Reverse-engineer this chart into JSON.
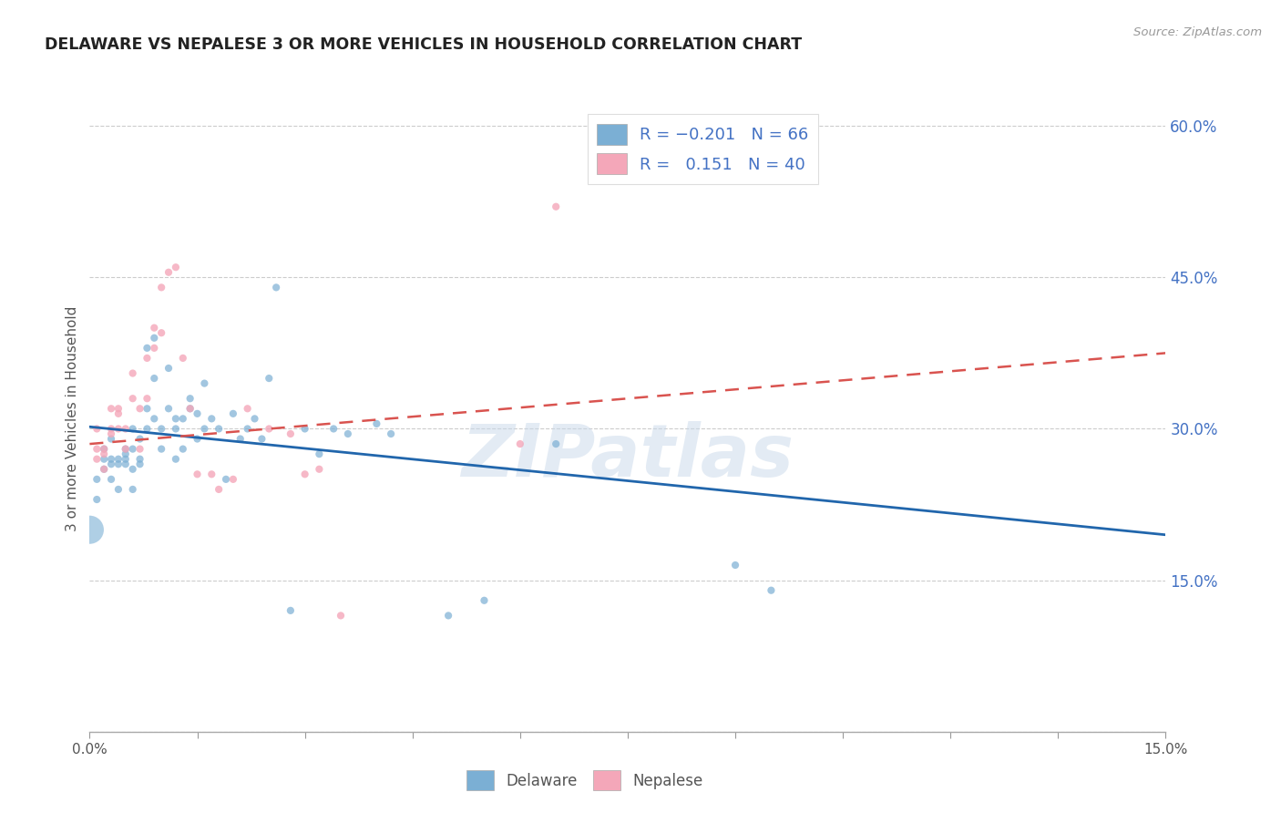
{
  "title": "DELAWARE VS NEPALESE 3 OR MORE VEHICLES IN HOUSEHOLD CORRELATION CHART",
  "source": "Source: ZipAtlas.com",
  "ylabel": "3 or more Vehicles in Household",
  "legend_label1": "Delaware",
  "legend_label2": "Nepalese",
  "xlim": [
    0.0,
    0.15
  ],
  "ylim": [
    0.0,
    0.62
  ],
  "x_ticks": [
    0.0,
    0.015,
    0.03,
    0.045,
    0.06,
    0.075,
    0.09,
    0.105,
    0.12,
    0.135,
    0.15
  ],
  "x_tick_labels_show": [
    "0.0%",
    "",
    "",
    "",
    "",
    "",
    "",
    "",
    "",
    "",
    "15.0%"
  ],
  "y_ticks": [
    0.0,
    0.15,
    0.3,
    0.45,
    0.6
  ],
  "y_tick_labels": [
    "",
    "15.0%",
    "30.0%",
    "45.0%",
    "60.0%"
  ],
  "color_delaware": "#7bafd4",
  "color_nepalese": "#f4a7b9",
  "color_line_delaware": "#2166ac",
  "color_line_nepalese": "#d9534f",
  "color_legend_text": "#4472c4",
  "watermark": "ZIPatlas",
  "delaware_x": [
    0.001,
    0.001,
    0.002,
    0.002,
    0.002,
    0.003,
    0.003,
    0.003,
    0.003,
    0.004,
    0.004,
    0.004,
    0.005,
    0.005,
    0.005,
    0.005,
    0.006,
    0.006,
    0.006,
    0.006,
    0.007,
    0.007,
    0.007,
    0.008,
    0.008,
    0.008,
    0.009,
    0.009,
    0.009,
    0.01,
    0.01,
    0.011,
    0.011,
    0.012,
    0.012,
    0.012,
    0.013,
    0.013,
    0.014,
    0.014,
    0.015,
    0.015,
    0.016,
    0.016,
    0.017,
    0.018,
    0.019,
    0.02,
    0.021,
    0.022,
    0.023,
    0.024,
    0.025,
    0.026,
    0.028,
    0.03,
    0.032,
    0.034,
    0.036,
    0.04,
    0.042,
    0.05,
    0.055,
    0.065,
    0.09,
    0.095
  ],
  "delaware_y": [
    0.23,
    0.25,
    0.26,
    0.27,
    0.28,
    0.25,
    0.265,
    0.27,
    0.29,
    0.24,
    0.265,
    0.27,
    0.265,
    0.27,
    0.275,
    0.28,
    0.24,
    0.26,
    0.28,
    0.3,
    0.29,
    0.265,
    0.27,
    0.3,
    0.32,
    0.38,
    0.31,
    0.35,
    0.39,
    0.28,
    0.3,
    0.32,
    0.36,
    0.27,
    0.3,
    0.31,
    0.28,
    0.31,
    0.32,
    0.33,
    0.29,
    0.315,
    0.3,
    0.345,
    0.31,
    0.3,
    0.25,
    0.315,
    0.29,
    0.3,
    0.31,
    0.29,
    0.35,
    0.44,
    0.12,
    0.3,
    0.275,
    0.3,
    0.295,
    0.305,
    0.295,
    0.115,
    0.13,
    0.285,
    0.165,
    0.14
  ],
  "delaware_sizes": [
    35,
    35,
    35,
    35,
    35,
    35,
    35,
    35,
    35,
    35,
    35,
    35,
    35,
    35,
    35,
    35,
    35,
    35,
    35,
    35,
    35,
    35,
    35,
    35,
    35,
    35,
    35,
    35,
    35,
    35,
    35,
    35,
    35,
    35,
    35,
    35,
    35,
    35,
    35,
    35,
    35,
    35,
    35,
    35,
    35,
    35,
    35,
    35,
    35,
    35,
    35,
    35,
    35,
    35,
    35,
    35,
    35,
    35,
    35,
    35,
    35,
    35,
    35,
    35,
    35,
    35
  ],
  "delaware_big_x": [
    0.0
  ],
  "delaware_big_y": [
    0.2
  ],
  "nepalese_x": [
    0.001,
    0.001,
    0.001,
    0.002,
    0.002,
    0.002,
    0.003,
    0.003,
    0.003,
    0.004,
    0.004,
    0.004,
    0.005,
    0.005,
    0.006,
    0.006,
    0.007,
    0.007,
    0.008,
    0.008,
    0.009,
    0.009,
    0.01,
    0.01,
    0.011,
    0.012,
    0.013,
    0.014,
    0.015,
    0.017,
    0.018,
    0.02,
    0.022,
    0.025,
    0.028,
    0.03,
    0.032,
    0.035,
    0.06,
    0.065
  ],
  "nepalese_y": [
    0.27,
    0.28,
    0.3,
    0.26,
    0.275,
    0.28,
    0.295,
    0.3,
    0.32,
    0.3,
    0.315,
    0.32,
    0.28,
    0.3,
    0.33,
    0.355,
    0.28,
    0.32,
    0.33,
    0.37,
    0.38,
    0.4,
    0.395,
    0.44,
    0.455,
    0.46,
    0.37,
    0.32,
    0.255,
    0.255,
    0.24,
    0.25,
    0.32,
    0.3,
    0.295,
    0.255,
    0.26,
    0.115,
    0.285,
    0.52
  ],
  "background_color": "#ffffff",
  "grid_color": "#cccccc",
  "line_delaware_x0": 0.0,
  "line_delaware_y0": 0.302,
  "line_delaware_x1": 0.15,
  "line_delaware_y1": 0.195,
  "line_nepalese_x0": 0.0,
  "line_nepalese_y0": 0.285,
  "line_nepalese_x1": 0.15,
  "line_nepalese_y1": 0.375
}
